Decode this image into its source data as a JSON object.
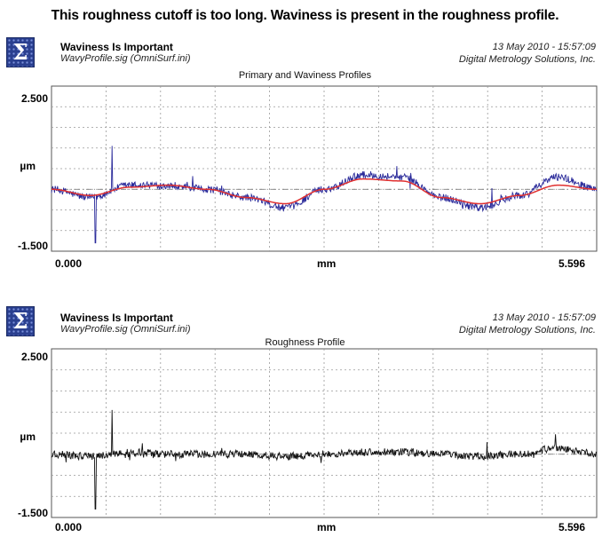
{
  "caption": "This roughness cutoff is too long.  Waviness is present in the roughness profile.",
  "panels": [
    {
      "title": "Waviness Is Important",
      "file": "WavyProfile.sig  (OmniSurf.ini)",
      "date": "13 May 2010 - 15:57:09",
      "org": "Digital Metrology Solutions, Inc.",
      "plot_title": "Primary and Waviness Profiles",
      "y_max_label": "2.500",
      "y_unit": "µm",
      "y_min_label": "-1.500",
      "x_min_label": "0.000",
      "x_unit": "mm",
      "x_max_label": "5.596"
    },
    {
      "title": "Waviness Is Important",
      "file": "WavyProfile.sig  (OmniSurf.ini)",
      "date": "13 May 2010 - 15:57:09",
      "org": "Digital Metrology Solutions, Inc.",
      "plot_title": "Roughness Profile",
      "y_max_label": "2.500",
      "y_unit": "µm",
      "y_min_label": "-1.500",
      "x_min_label": "0.000",
      "x_unit": "mm",
      "x_max_label": "5.596"
    }
  ],
  "chart_data": [
    {
      "type": "line",
      "title": "Primary and Waviness Profiles",
      "xlabel": "mm",
      "ylabel": "µm",
      "xlim": [
        0,
        5.596
      ],
      "ylim": [
        -1.5,
        2.5
      ],
      "grid": true,
      "x": [
        0.0,
        0.4,
        0.8,
        1.2,
        1.6,
        2.0,
        2.4,
        2.8,
        3.2,
        3.6,
        4.0,
        4.4,
        4.8,
        5.2,
        5.596
      ],
      "series": [
        {
          "color": "#2a2a9a",
          "values": [
            0.0,
            -0.2,
            0.1,
            0.1,
            0.0,
            -0.2,
            -0.45,
            0.0,
            0.35,
            0.3,
            -0.2,
            -0.45,
            -0.15,
            0.3,
            0.0
          ]
        },
        {
          "color": "#e03030",
          "values": [
            0.0,
            -0.15,
            0.05,
            0.1,
            0.0,
            -0.2,
            -0.35,
            0.0,
            0.25,
            0.2,
            -0.2,
            -0.35,
            -0.15,
            0.1,
            0.0
          ]
        }
      ]
    },
    {
      "type": "line",
      "title": "Roughness Profile",
      "xlabel": "mm",
      "ylabel": "µm",
      "xlim": [
        0,
        5.596
      ],
      "ylim": [
        -1.5,
        2.5
      ],
      "grid": true,
      "x": [
        0.0,
        0.4,
        0.8,
        1.2,
        1.6,
        2.0,
        2.4,
        2.8,
        3.2,
        3.6,
        4.0,
        4.4,
        4.8,
        5.2,
        5.596
      ],
      "series": [
        {
          "color": "#111111",
          "values": [
            0.0,
            -0.05,
            0.05,
            0.0,
            0.0,
            0.0,
            -0.05,
            0.0,
            0.05,
            0.05,
            0.0,
            -0.05,
            0.0,
            0.15,
            0.0
          ]
        }
      ]
    }
  ]
}
